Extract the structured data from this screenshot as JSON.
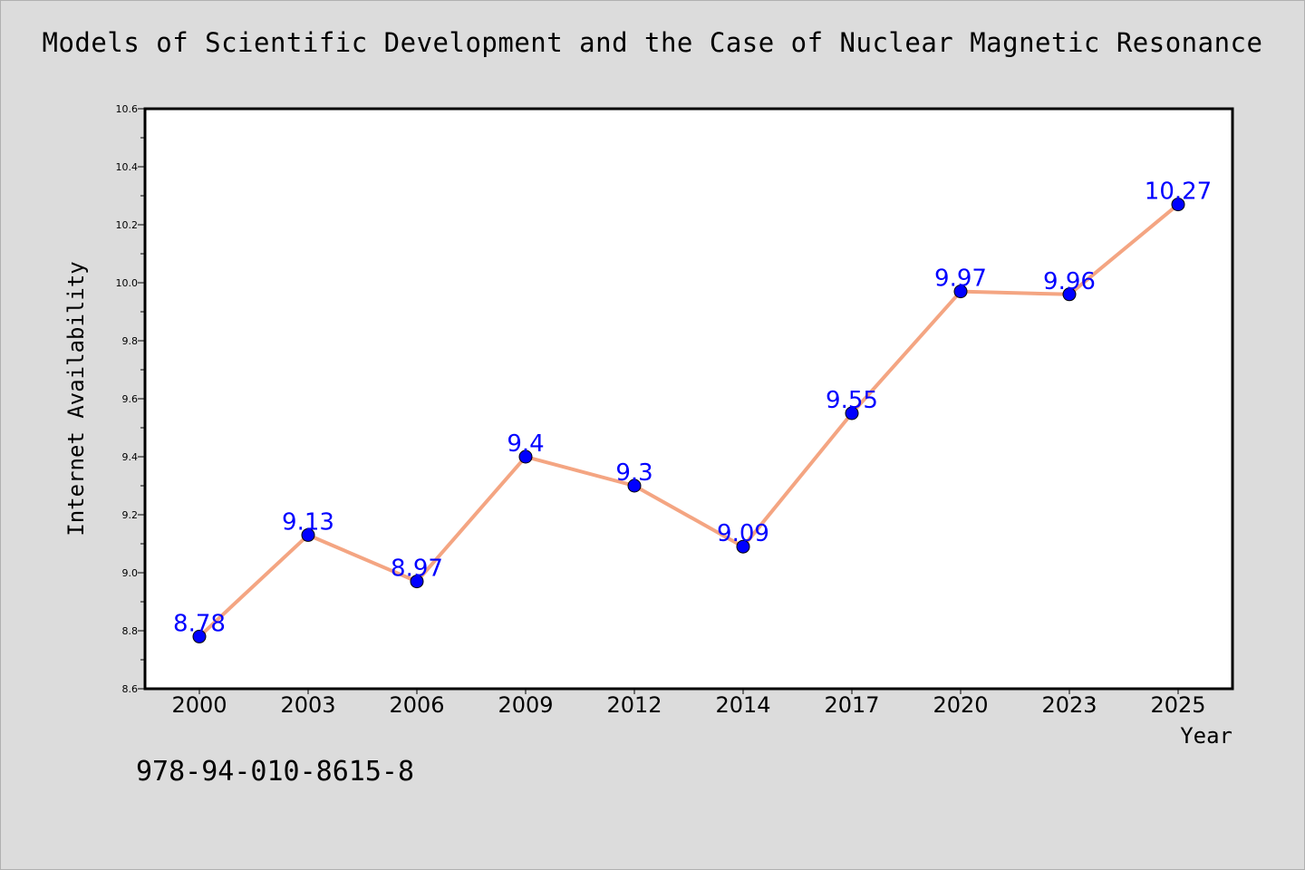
{
  "chart_data": {
    "type": "line",
    "title": "Models of Scientific Development and the Case of Nuclear Magnetic Resonance",
    "xlabel": "Year",
    "ylabel": "Internet Availability",
    "categories": [
      "2000",
      "2003",
      "2006",
      "2009",
      "2012",
      "2014",
      "2017",
      "2020",
      "2023",
      "2025"
    ],
    "series": [
      {
        "values": [
          8.78,
          9.13,
          8.97,
          9.4,
          9.3,
          9.09,
          9.55,
          9.97,
          9.96,
          10.27
        ],
        "data_labels": [
          "8.78",
          "9.13",
          "8.97",
          "9.4",
          "9.3",
          "9.09",
          "9.55",
          "9.97",
          "9.96",
          "10.27"
        ]
      }
    ],
    "ylim": [
      8.6,
      10.6
    ],
    "yticks": [
      "8.6",
      "8.8",
      "9.0",
      "9.2",
      "9.4",
      "9.6",
      "9.8",
      "10.0",
      "10.2",
      "10.4",
      "10.6"
    ],
    "grid": false,
    "legend": "none",
    "colors": {
      "line": "#f4a582",
      "marker": "#0000ff",
      "data_label": "#0000ff",
      "background": "#dcdcdc",
      "plot_background": "#ffffff"
    }
  },
  "footer": {
    "isbn": "978-94-010-8615-8"
  }
}
